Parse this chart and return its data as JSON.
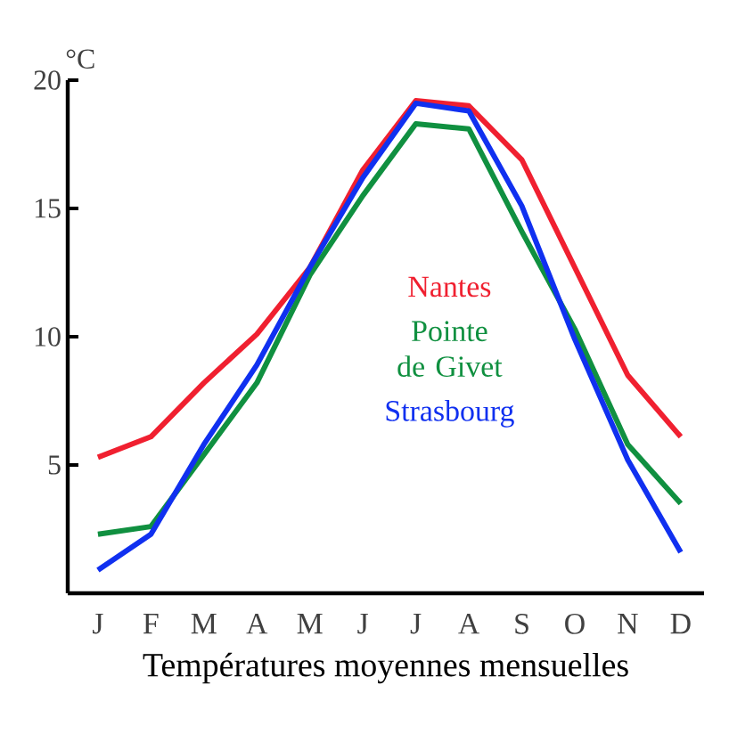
{
  "chart_data": {
    "type": "line",
    "title": "Températures moyennes mensuelles",
    "ylabel": "°C",
    "categories": [
      "J",
      "F",
      "M",
      "A",
      "M",
      "J",
      "J",
      "A",
      "S",
      "O",
      "N",
      "D"
    ],
    "series": [
      {
        "name": "Nantes",
        "color": "#f02030",
        "values": [
          5.3,
          6.1,
          8.2,
          10.1,
          12.7,
          16.5,
          19.2,
          19.0,
          16.9,
          12.7,
          8.5,
          6.1
        ]
      },
      {
        "name": "Pointe de Givet",
        "color": "#109040",
        "values": [
          2.3,
          2.6,
          5.4,
          8.2,
          12.4,
          15.5,
          18.3,
          18.1,
          14.1,
          10.3,
          5.8,
          3.5
        ]
      },
      {
        "name": "Strasbourg",
        "color": "#1030f0",
        "values": [
          0.9,
          2.3,
          5.8,
          8.9,
          12.7,
          16.2,
          19.1,
          18.8,
          15.1,
          9.9,
          5.2,
          1.6
        ]
      }
    ],
    "ylim": [
      0,
      20
    ],
    "yticks": [
      5,
      10,
      15,
      20
    ],
    "legend": "center",
    "grid": false
  }
}
